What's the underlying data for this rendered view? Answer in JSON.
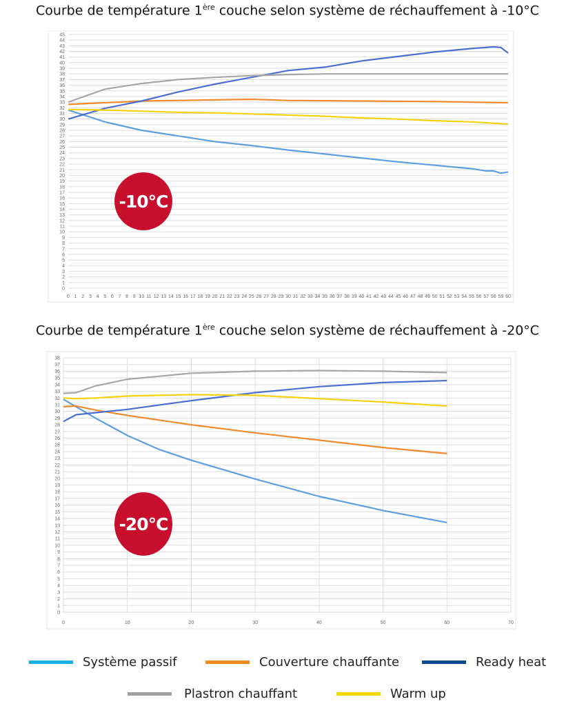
{
  "charts_titles": [
    {
      "pre": "Courbe de température 1",
      "sup": "ère",
      "post": " couche selon système de réchauffement à -10°C"
    },
    {
      "pre": "Courbe de température 1",
      "sup": "ère",
      "post": " couche selon système de réchauffement à -20°C"
    }
  ],
  "legend": [
    {
      "label": "Système passif",
      "color": "#1aaee6"
    },
    {
      "label": "Couverture chauffante",
      "color": "#f08a1c"
    },
    {
      "label": "Ready heat",
      "color": "#0d4c8c"
    },
    {
      "label": "Plastron chauffant",
      "color": "#a0a0a0"
    },
    {
      "label": "Warm up",
      "color": "#f5d800"
    }
  ],
  "chart_data": [
    {
      "type": "line",
      "title": "Courbe de température 1ère couche selon système de réchauffement à -10°C",
      "badge": "-10°C",
      "xlim": [
        0,
        60
      ],
      "xticks_step": 1,
      "ylim": [
        0,
        45
      ],
      "yticks_step": 1,
      "grid": true,
      "series": [
        {
          "name": "Système passif",
          "color": "#5c9fe0",
          "x": [
            0,
            5,
            10,
            15,
            20,
            25,
            30,
            35,
            40,
            45,
            50,
            55,
            57,
            58,
            59,
            60
          ],
          "y": [
            31.6,
            29.5,
            28,
            27,
            26,
            25.3,
            24.5,
            23.8,
            23.1,
            22.4,
            21.8,
            21.2,
            20.8,
            20.8,
            20.4,
            20.6
          ]
        },
        {
          "name": "Couverture chauffante",
          "color": "#f08a2c",
          "x": [
            0,
            5,
            10,
            15,
            20,
            25,
            30,
            40,
            50,
            60
          ],
          "y": [
            32.6,
            32.9,
            33.2,
            33.3,
            33.4,
            33.5,
            33.3,
            33.2,
            33.1,
            32.9
          ]
        },
        {
          "name": "Ready heat",
          "color": "#4a6fd0",
          "x": [
            0,
            5,
            10,
            15,
            20,
            25,
            30,
            35,
            40,
            45,
            50,
            55,
            58,
            59,
            60
          ],
          "y": [
            30,
            31.9,
            33.2,
            34.8,
            36.2,
            37.4,
            38.6,
            39.2,
            40.3,
            41.1,
            41.9,
            42.5,
            42.8,
            42.7,
            41.7
          ]
        },
        {
          "name": "Plastron chauffant",
          "color": "#a6a6a6",
          "x": [
            0,
            5,
            10,
            15,
            20,
            25,
            30,
            35,
            60
          ],
          "y": [
            33,
            35.3,
            36.3,
            37,
            37.4,
            37.7,
            37.9,
            38,
            38
          ]
        },
        {
          "name": "Warm up",
          "color": "#f5d20c",
          "x": [
            0,
            5,
            10,
            15,
            20,
            25,
            30,
            35,
            40,
            45,
            50,
            55,
            60
          ],
          "y": [
            31.7,
            31.6,
            31.4,
            31.2,
            31.1,
            30.9,
            30.7,
            30.5,
            30.2,
            30,
            29.7,
            29.5,
            29.1
          ]
        }
      ]
    },
    {
      "type": "line",
      "title": "Courbe de température 1ère couche selon système de réchauffement à -20°C",
      "badge": "-20°C",
      "xlim": [
        0,
        70
      ],
      "xticks_step": 10,
      "ylim": [
        0,
        38
      ],
      "yticks_step": 1,
      "grid": true,
      "series": [
        {
          "name": "Système passif",
          "color": "#5c9fe0",
          "x": [
            0,
            5,
            10,
            15,
            20,
            30,
            40,
            50,
            60
          ],
          "y": [
            31.8,
            29,
            26.4,
            24.3,
            22.7,
            19.9,
            17.3,
            15.2,
            13.4
          ]
        },
        {
          "name": "Couverture chauffante",
          "color": "#f08a2c",
          "x": [
            0,
            2,
            5,
            10,
            20,
            30,
            40,
            50,
            60
          ],
          "y": [
            30.7,
            30.8,
            30.2,
            29.4,
            28,
            26.8,
            25.7,
            24.6,
            23.7
          ]
        },
        {
          "name": "Ready heat",
          "color": "#4a6fd0",
          "x": [
            0,
            2,
            5,
            10,
            20,
            30,
            40,
            50,
            60
          ],
          "y": [
            28.5,
            29.5,
            29.8,
            30.3,
            31.6,
            32.8,
            33.7,
            34.3,
            34.6
          ]
        },
        {
          "name": "Plastron chauffant",
          "color": "#a6a6a6",
          "x": [
            0,
            2,
            5,
            10,
            20,
            30,
            40,
            50,
            60
          ],
          "y": [
            32.7,
            32.8,
            33.8,
            34.8,
            35.7,
            36,
            36.1,
            36,
            35.8
          ]
        },
        {
          "name": "Warm up",
          "color": "#f5d20c",
          "x": [
            0,
            2,
            5,
            10,
            20,
            30,
            40,
            50,
            60
          ],
          "y": [
            32,
            31.9,
            32,
            32.3,
            32.5,
            32.4,
            31.9,
            31.4,
            30.8
          ]
        }
      ]
    }
  ]
}
